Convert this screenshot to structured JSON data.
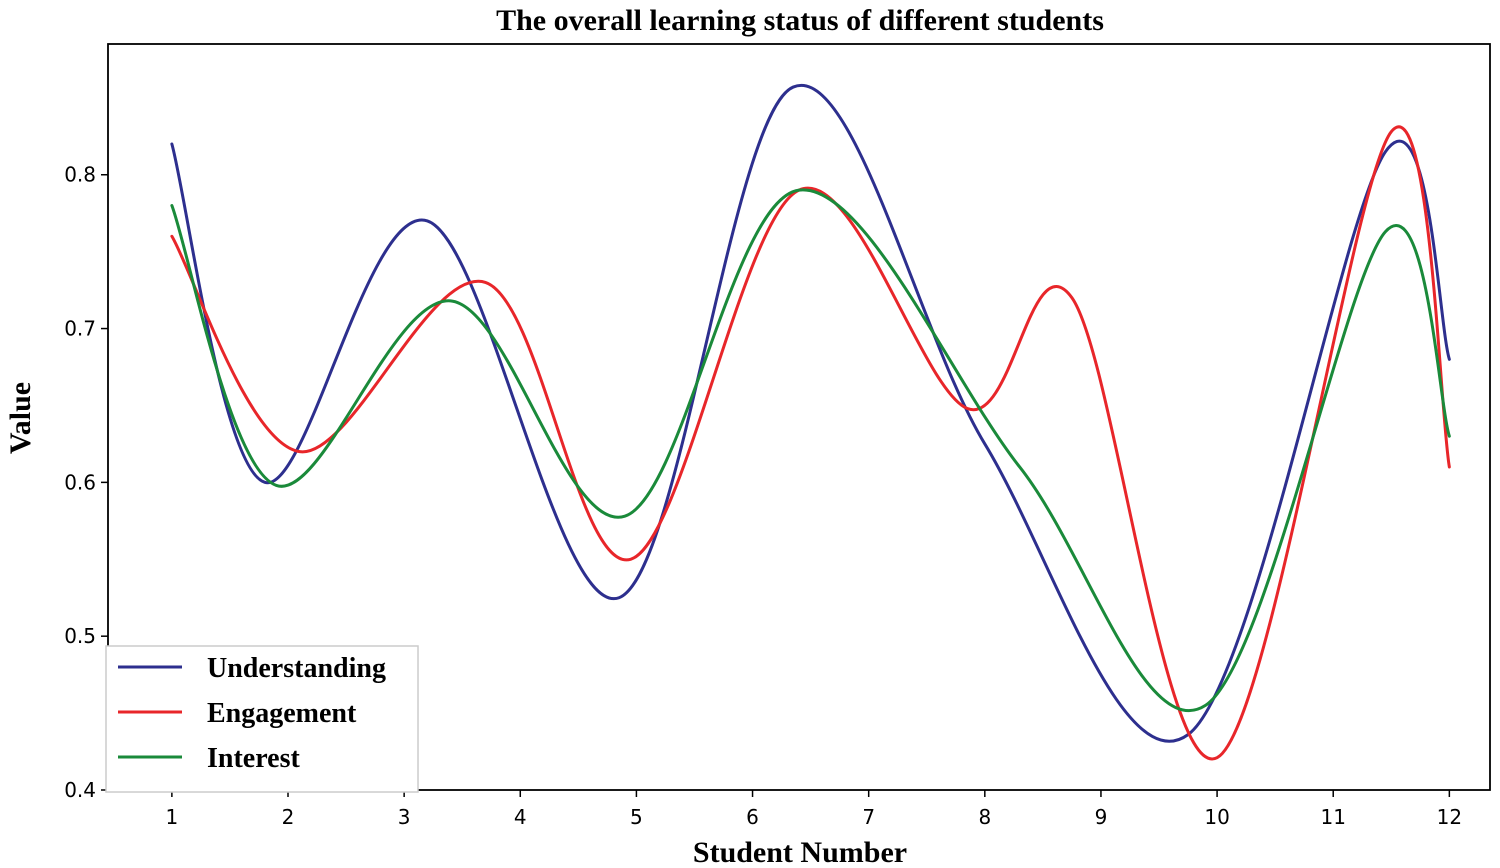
{
  "chart_data": {
    "type": "line",
    "title": "The overall learning status of different students",
    "xlabel": "Student Number",
    "ylabel": "Value",
    "x": [
      1,
      2,
      3,
      4,
      5,
      6,
      7,
      8,
      9,
      10,
      11,
      12
    ],
    "xlim": [
      0.45,
      12.35
    ],
    "ylim": [
      0.4,
      0.885
    ],
    "yticks": [
      0.4,
      0.5,
      0.6,
      0.7,
      0.8
    ],
    "ytick_labels": [
      "0.4",
      "0.5",
      "0.6",
      "0.7",
      "0.8"
    ],
    "xtick_labels": [
      "1",
      "2",
      "3",
      "4",
      "5",
      "6",
      "7",
      "8",
      "9",
      "10",
      "11",
      "12"
    ],
    "grid": false,
    "legend_position": "lower-left",
    "smooth": true,
    "series": [
      {
        "name": "Understanding",
        "color": "#2d2f8e",
        "points": [
          [
            1,
            0.82
          ],
          [
            1.8,
            0.6
          ],
          [
            3.2,
            0.77
          ],
          [
            4.85,
            0.525
          ],
          [
            6.35,
            0.857
          ],
          [
            8,
            0.625
          ],
          [
            9.75,
            0.436
          ],
          [
            11.45,
            0.815
          ],
          [
            12,
            0.68
          ]
        ]
      },
      {
        "name": "Engagement",
        "color": "#e8262a",
        "points": [
          [
            1,
            0.76
          ],
          [
            2.1,
            0.62
          ],
          [
            3.7,
            0.73
          ],
          [
            4.95,
            0.55
          ],
          [
            6.4,
            0.79
          ],
          [
            7.85,
            0.648
          ],
          [
            8.75,
            0.72
          ],
          [
            10,
            0.421
          ],
          [
            11.5,
            0.828
          ],
          [
            12,
            0.61
          ]
        ]
      },
      {
        "name": "Interest",
        "color": "#1a8a3a",
        "points": [
          [
            1,
            0.78
          ],
          [
            1.9,
            0.598
          ],
          [
            3.4,
            0.718
          ],
          [
            4.9,
            0.578
          ],
          [
            6.4,
            0.79
          ],
          [
            8.3,
            0.61
          ],
          [
            9.9,
            0.455
          ],
          [
            11.45,
            0.763
          ],
          [
            12,
            0.63
          ]
        ]
      }
    ]
  }
}
